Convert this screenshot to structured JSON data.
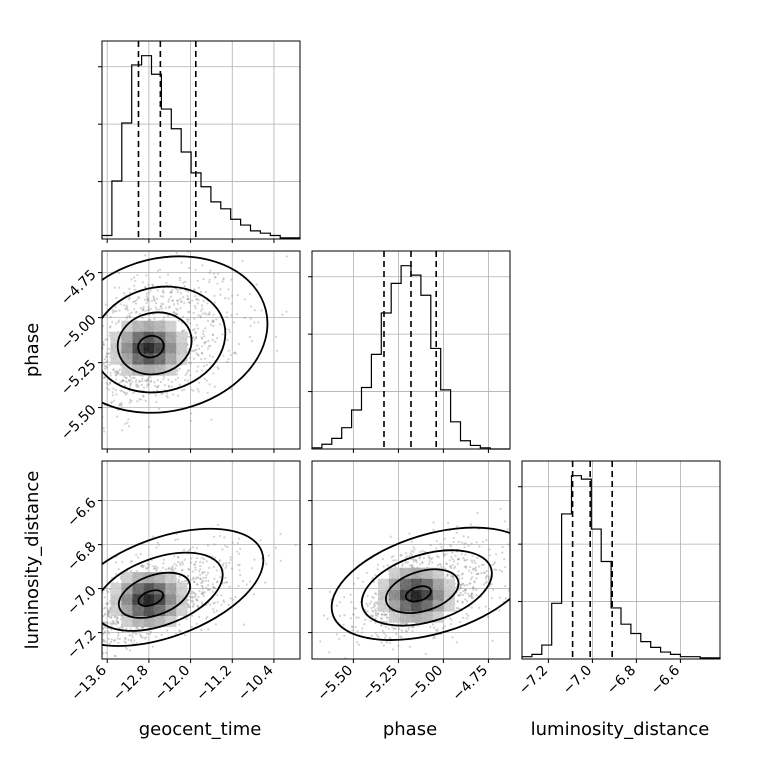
{
  "chart_data": {
    "type": "corner",
    "parameters": [
      "geocent_time",
      "phase",
      "luminosity_distance"
    ],
    "ranges": {
      "geocent_time": [
        -13.7,
        -9.9
      ],
      "phase": [
        -5.73,
        -4.63
      ],
      "luminosity_distance": [
        -7.32,
        -6.42
      ]
    },
    "ticks": {
      "geocent_time": [
        -13.6,
        -12.8,
        -12.0,
        -11.2,
        -10.4
      ],
      "phase": [
        -5.5,
        -5.25,
        -5.0,
        -4.75
      ],
      "luminosity_distance": [
        -7.2,
        -7.0,
        -6.8,
        -6.6
      ]
    },
    "tick_labels": {
      "geocent_time": [
        "−13.6",
        "−12.8",
        "−12.0",
        "−11.2",
        "−10.4"
      ],
      "phase": [
        "−5.50",
        "−5.25",
        "−5.00",
        "−4.75"
      ],
      "luminosity_distance": [
        "−7.2",
        "−7.0",
        "−6.8",
        "−6.6"
      ]
    },
    "axis_labels": {
      "geocent_time": "geocent_time",
      "phase": "phase",
      "luminosity_distance": "luminosity_distance"
    },
    "quantiles": {
      "geocent_time": [
        -13.0,
        -12.58,
        -11.9
      ],
      "phase": [
        -5.33,
        -5.18,
        -5.04
      ],
      "luminosity_distance": [
        -7.09,
        -7.01,
        -6.91
      ]
    },
    "histograms": {
      "geocent_time": {
        "edges": [
          -13.7,
          -13.51,
          -13.32,
          -13.13,
          -12.94,
          -12.75,
          -12.56,
          -12.37,
          -12.18,
          -11.99,
          -11.8,
          -11.61,
          -11.42,
          -11.23,
          -11.04,
          -10.85,
          -10.66,
          -10.47,
          -10.28,
          -10.09,
          -9.9
        ],
        "counts": [
          3,
          50,
          100,
          150,
          158,
          142,
          112,
          95,
          75,
          57,
          45,
          32,
          26,
          17,
          12,
          7,
          5,
          3,
          1,
          1
        ]
      },
      "phase": {
        "edges": [
          -5.73,
          -5.675,
          -5.62,
          -5.565,
          -5.51,
          -5.455,
          -5.4,
          -5.345,
          -5.29,
          -5.235,
          -5.18,
          -5.125,
          -5.07,
          -5.015,
          -4.96,
          -4.905,
          -4.85,
          -4.795,
          -4.74,
          -4.685,
          -4.63
        ],
        "counts": [
          1,
          4,
          9,
          18,
          33,
          52,
          80,
          115,
          140,
          155,
          147,
          130,
          85,
          50,
          23,
          7,
          3,
          1,
          0,
          0
        ]
      },
      "luminosity_distance": {
        "edges": [
          -7.32,
          -7.275,
          -7.23,
          -7.185,
          -7.14,
          -7.095,
          -7.05,
          -7.005,
          -6.96,
          -6.915,
          -6.87,
          -6.825,
          -6.78,
          -6.735,
          -6.69,
          -6.645,
          -6.6,
          -6.555,
          -6.51,
          -6.465,
          -6.42
        ],
        "counts": [
          2,
          4,
          12,
          48,
          125,
          158,
          155,
          112,
          84,
          44,
          30,
          22,
          15,
          10,
          6,
          4,
          2,
          2,
          1,
          1
        ]
      }
    },
    "density_2d": {
      "phase_vs_geocent_time": {
        "peak": [
          -12.8,
          -5.17
        ],
        "spread": [
          0.55,
          0.17
        ],
        "corr": 0.35
      },
      "luminosity_distance_vs_geocent_time": {
        "peak": [
          -12.8,
          -7.05
        ],
        "spread": [
          0.55,
          0.09
        ],
        "corr": 0.55
      },
      "luminosity_distance_vs_phase": {
        "peak": [
          -5.15,
          -7.03
        ],
        "spread": [
          0.16,
          0.09
        ],
        "corr": 0.45
      }
    },
    "grid": true
  }
}
